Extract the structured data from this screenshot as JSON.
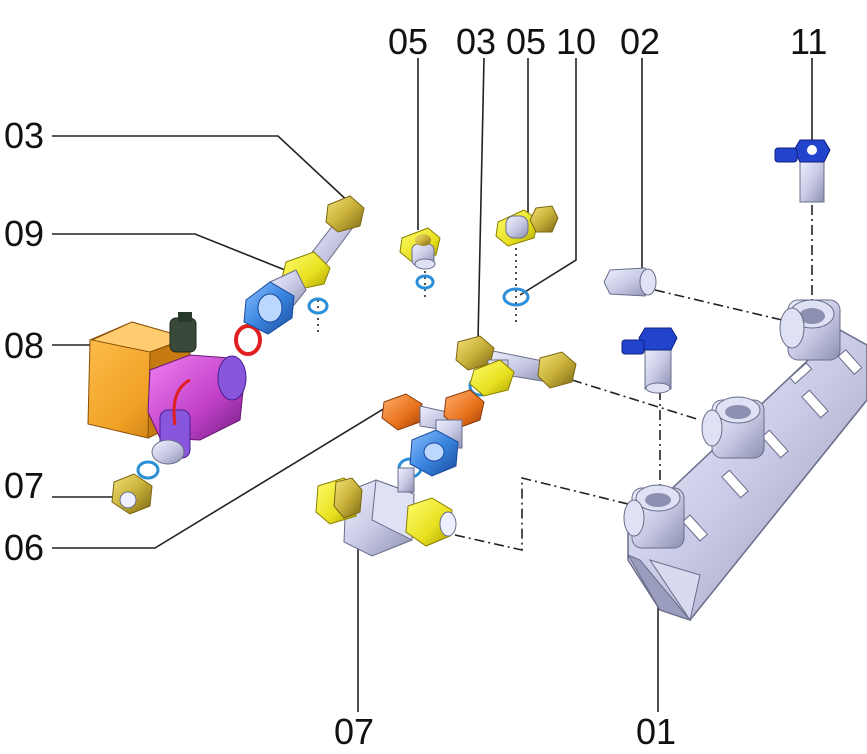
{
  "labels": {
    "label_05_a": "05",
    "label_03_top": "03",
    "label_05_b": "05",
    "label_10": "10",
    "label_02": "02",
    "label_11": "11",
    "label_03_left": "03",
    "label_09": "09",
    "label_08": "08",
    "label_07_left": "07",
    "label_06": "06",
    "label_07_bottom": "07",
    "label_01": "01"
  },
  "colors": {
    "brass": "#c9b13a",
    "brass_dark": "#8a7416",
    "steel": "#c9cbe6",
    "steel_dark": "#8d90b0",
    "pump_orange": "#f0a024",
    "pump_magenta": "#c040c8",
    "pump_purple": "#8855dd",
    "blue_nut": "#3a86e0",
    "orange_nut": "#e8701a",
    "valve_blue": "#2244cc",
    "yellow": "#e8e020",
    "o_ring": "#2a8fd8",
    "red_ring": "#e02020"
  }
}
